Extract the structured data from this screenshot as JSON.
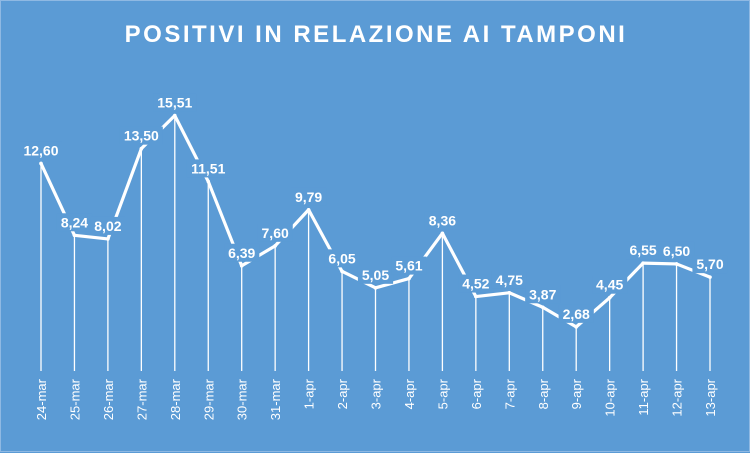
{
  "chart_data": {
    "type": "line",
    "title": "POSITIVI IN RELAZIONE AI TAMPONI",
    "xlabel": "",
    "ylabel": "",
    "categories": [
      "24-mar",
      "25-mar",
      "26-mar",
      "27-mar",
      "28-mar",
      "29-mar",
      "30-mar",
      "31-mar",
      "1-apr",
      "2-apr",
      "3-apr",
      "4-apr",
      "5-apr",
      "6-apr",
      "7-apr",
      "8-apr",
      "9-apr",
      "10-apr",
      "11-apr",
      "12-apr",
      "13-apr"
    ],
    "series": [
      {
        "values": [
          12.6,
          8.24,
          8.02,
          13.5,
          15.51,
          11.51,
          6.39,
          7.6,
          9.79,
          6.05,
          5.05,
          5.61,
          8.36,
          4.52,
          4.75,
          3.87,
          2.68,
          4.45,
          6.55,
          6.5,
          5.7
        ],
        "labels": [
          "12,60",
          "8,24",
          "8,02",
          "13,50",
          "15,51",
          "11,51",
          "6,39",
          "7,60",
          "9,79",
          "6,05",
          "5,05",
          "5,61",
          "8,36",
          "4,52",
          "4,75",
          "3,87",
          "2,68",
          "4,45",
          "6,55",
          "6,50",
          "5,70"
        ]
      }
    ],
    "ylim": [
      0,
      17
    ],
    "grid": false,
    "legend": "none",
    "data_labels": true,
    "drop_lines": true,
    "colors": {
      "background": "#5b9bd5",
      "line": "#ffffff",
      "text": "#ffffff"
    }
  }
}
